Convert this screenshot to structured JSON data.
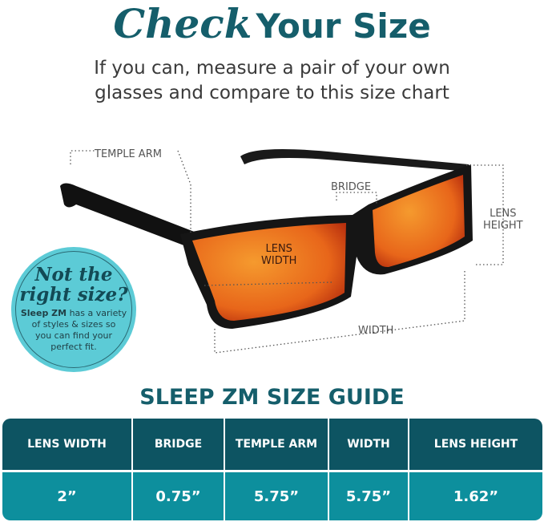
{
  "header": {
    "title_script": "Check",
    "title_bold": "Your Size",
    "subtitle_line1": "If you can, measure a pair of your own",
    "subtitle_line2": "glasses and compare to this size chart"
  },
  "diagram_labels": {
    "temple_arm": "TEMPLE ARM",
    "bridge": "BRIDGE",
    "lens_height_1": "LENS",
    "lens_height_2": "HEIGHT",
    "lens_width_1": "LENS",
    "lens_width_2": "WIDTH",
    "width": "WIDTH"
  },
  "callout": {
    "heading_line1": "Not the",
    "heading_line2": "right size?",
    "brand": "Sleep ZM",
    "body_line1_rest": " has a variety",
    "body_line2": "of styles & sizes so",
    "body_line3": "you can find your",
    "body_line4": "perfect fit.",
    "color": "#5ccbd6"
  },
  "size_guide": {
    "title": "SLEEP ZM SIZE GUIDE",
    "headers": [
      "LENS WIDTH",
      "BRIDGE",
      "TEMPLE ARM",
      "WIDTH",
      "LENS HEIGHT"
    ],
    "values": [
      "2”",
      "0.75”",
      "5.75”",
      "5.75”",
      "1.62”"
    ],
    "header_color": "#0d5462",
    "row_color": "#0d8f9d"
  },
  "colors": {
    "brand_teal": "#155e6b",
    "lens_orange": "#f07a1a"
  }
}
